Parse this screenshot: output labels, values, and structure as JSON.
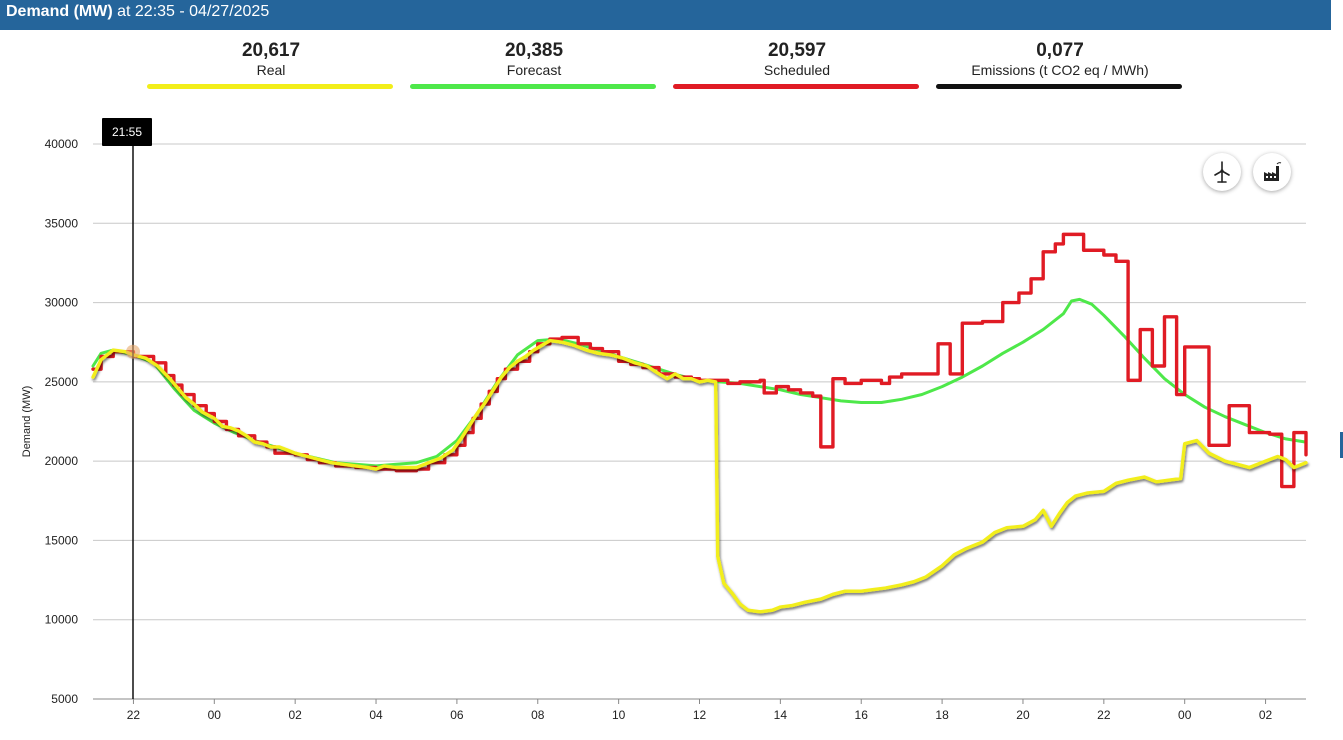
{
  "header": {
    "title_bold": "Demand (MW)",
    "title_rest": " at 22:35 - 04/27/2025",
    "color": "#25659b"
  },
  "stats": [
    {
      "value": "20,617",
      "label": "Real",
      "color": "#f2ee1a"
    },
    {
      "value": "20,385",
      "label": "Forecast",
      "color": "#4ee84a"
    },
    {
      "value": "20,597",
      "label": "Scheduled",
      "color": "#e01b24"
    },
    {
      "value": "0,077",
      "label": "Emissions (t CO2 eq / MWh)",
      "color": "#111111"
    }
  ],
  "tools": {
    "wind_icon": "wind-turbine-icon",
    "factory_icon": "factory-icon"
  },
  "cursor": {
    "label": "21:55"
  },
  "chart_data": {
    "type": "line",
    "ylabel": "Demand (MW)",
    "xlabel": "",
    "ylim": [
      5000,
      40000
    ],
    "yticks": [
      5000,
      10000,
      15000,
      20000,
      25000,
      30000,
      35000,
      40000
    ],
    "xlim": [
      21.0,
      51.0
    ],
    "xticks": [
      {
        "x": 22,
        "label": "22"
      },
      {
        "x": 24,
        "label": "00"
      },
      {
        "x": 26,
        "label": "02"
      },
      {
        "x": 28,
        "label": "04"
      },
      {
        "x": 30,
        "label": "06"
      },
      {
        "x": 32,
        "label": "08"
      },
      {
        "x": 34,
        "label": "10"
      },
      {
        "x": 36,
        "label": "12"
      },
      {
        "x": 38,
        "label": "14"
      },
      {
        "x": 40,
        "label": "16"
      },
      {
        "x": 42,
        "label": "18"
      },
      {
        "x": 44,
        "label": "20"
      },
      {
        "x": 46,
        "label": "22"
      },
      {
        "x": 48,
        "label": "00"
      },
      {
        "x": 50,
        "label": "02"
      }
    ],
    "grid": true,
    "series": [
      {
        "name": "Forecast",
        "color": "#4ee84a",
        "style": "smooth",
        "points": [
          [
            21.0,
            26000
          ],
          [
            21.2,
            26800
          ],
          [
            21.5,
            27000
          ],
          [
            22.0,
            26700
          ],
          [
            22.5,
            26200
          ],
          [
            23.0,
            24600
          ],
          [
            23.5,
            23200
          ],
          [
            24.0,
            22400
          ],
          [
            24.5,
            21800
          ],
          [
            25.0,
            21300
          ],
          [
            25.5,
            20900
          ],
          [
            26.0,
            20500
          ],
          [
            26.5,
            20200
          ],
          [
            27.0,
            19900
          ],
          [
            27.5,
            19800
          ],
          [
            28.0,
            19700
          ],
          [
            28.5,
            19800
          ],
          [
            29.0,
            19900
          ],
          [
            29.5,
            20300
          ],
          [
            30.0,
            21300
          ],
          [
            30.5,
            23000
          ],
          [
            31.0,
            25000
          ],
          [
            31.5,
            26700
          ],
          [
            32.0,
            27600
          ],
          [
            32.5,
            27700
          ],
          [
            33.0,
            27400
          ],
          [
            33.5,
            27000
          ],
          [
            34.0,
            26600
          ],
          [
            34.5,
            26200
          ],
          [
            35.0,
            25800
          ],
          [
            35.5,
            25400
          ],
          [
            36.0,
            25100
          ],
          [
            36.5,
            25000
          ],
          [
            37.0,
            24900
          ],
          [
            37.5,
            24700
          ],
          [
            38.0,
            24500
          ],
          [
            38.5,
            24200
          ],
          [
            39.0,
            24000
          ],
          [
            39.5,
            23800
          ],
          [
            40.0,
            23700
          ],
          [
            40.5,
            23700
          ],
          [
            41.0,
            23900
          ],
          [
            41.5,
            24200
          ],
          [
            42.0,
            24700
          ],
          [
            42.5,
            25300
          ],
          [
            43.0,
            26000
          ],
          [
            43.5,
            26800
          ],
          [
            44.0,
            27500
          ],
          [
            44.5,
            28300
          ],
          [
            45.0,
            29300
          ],
          [
            45.2,
            30100
          ],
          [
            45.4,
            30200
          ],
          [
            45.7,
            29900
          ],
          [
            46.0,
            29200
          ],
          [
            46.5,
            27900
          ],
          [
            47.0,
            26500
          ],
          [
            47.5,
            25200
          ],
          [
            48.0,
            24200
          ],
          [
            48.5,
            23400
          ],
          [
            49.0,
            22800
          ],
          [
            49.5,
            22300
          ],
          [
            50.0,
            21800
          ],
          [
            50.5,
            21400
          ],
          [
            51.0,
            21200
          ]
        ]
      },
      {
        "name": "Scheduled",
        "color": "#e01b24",
        "style": "step",
        "points": [
          [
            21.0,
            25800
          ],
          [
            21.2,
            26600
          ],
          [
            21.5,
            26900
          ],
          [
            22.0,
            26600
          ],
          [
            22.5,
            26200
          ],
          [
            22.8,
            25400
          ],
          [
            23.0,
            24800
          ],
          [
            23.2,
            24200
          ],
          [
            23.5,
            23500
          ],
          [
            23.8,
            23000
          ],
          [
            24.0,
            22500
          ],
          [
            24.3,
            22000
          ],
          [
            24.6,
            21600
          ],
          [
            25.0,
            21200
          ],
          [
            25.3,
            20900
          ],
          [
            25.5,
            20500
          ],
          [
            26.0,
            20400
          ],
          [
            26.3,
            20100
          ],
          [
            26.6,
            19900
          ],
          [
            27.0,
            19700
          ],
          [
            27.5,
            19600
          ],
          [
            28.0,
            19500
          ],
          [
            28.5,
            19400
          ],
          [
            29.0,
            19500
          ],
          [
            29.3,
            19900
          ],
          [
            29.7,
            20400
          ],
          [
            30.0,
            21000
          ],
          [
            30.2,
            21800
          ],
          [
            30.4,
            22700
          ],
          [
            30.6,
            23600
          ],
          [
            30.8,
            24400
          ],
          [
            31.0,
            25200
          ],
          [
            31.2,
            25800
          ],
          [
            31.5,
            26300
          ],
          [
            31.8,
            26900
          ],
          [
            32.0,
            27400
          ],
          [
            32.3,
            27700
          ],
          [
            32.6,
            27800
          ],
          [
            33.0,
            27400
          ],
          [
            33.3,
            27100
          ],
          [
            33.6,
            26900
          ],
          [
            34.0,
            26300
          ],
          [
            34.3,
            26100
          ],
          [
            34.6,
            25900
          ],
          [
            35.0,
            25500
          ],
          [
            35.4,
            25300
          ],
          [
            35.8,
            25200
          ],
          [
            36.0,
            25100
          ],
          [
            36.3,
            25100
          ],
          [
            36.7,
            24900
          ],
          [
            37.0,
            25000
          ],
          [
            37.5,
            25100
          ],
          [
            37.6,
            24300
          ],
          [
            37.9,
            24700
          ],
          [
            38.2,
            24500
          ],
          [
            38.5,
            24300
          ],
          [
            38.8,
            24100
          ],
          [
            39.0,
            20900
          ],
          [
            39.3,
            25200
          ],
          [
            39.6,
            24900
          ],
          [
            40.0,
            25100
          ],
          [
            40.5,
            24900
          ],
          [
            40.7,
            25300
          ],
          [
            41.0,
            25500
          ],
          [
            41.5,
            25500
          ],
          [
            41.9,
            27400
          ],
          [
            42.2,
            25500
          ],
          [
            42.5,
            28700
          ],
          [
            43.0,
            28800
          ],
          [
            43.5,
            30000
          ],
          [
            43.9,
            30600
          ],
          [
            44.2,
            31500
          ],
          [
            44.5,
            33200
          ],
          [
            44.8,
            33700
          ],
          [
            45.0,
            34300
          ],
          [
            45.5,
            33300
          ],
          [
            46.0,
            33000
          ],
          [
            46.3,
            32600
          ],
          [
            46.6,
            25100
          ],
          [
            46.9,
            28300
          ],
          [
            47.2,
            26000
          ],
          [
            47.5,
            29100
          ],
          [
            47.8,
            24200
          ],
          [
            48.0,
            27200
          ],
          [
            48.6,
            21000
          ],
          [
            49.1,
            23500
          ],
          [
            49.6,
            21800
          ],
          [
            50.1,
            21700
          ],
          [
            50.4,
            18400
          ],
          [
            50.7,
            21800
          ],
          [
            51.0,
            20400
          ]
        ]
      },
      {
        "name": "Real",
        "color": "#f2ee1a",
        "style": "jagged",
        "points": [
          [
            21.0,
            25300
          ],
          [
            21.2,
            26400
          ],
          [
            21.5,
            27000
          ],
          [
            21.8,
            26900
          ],
          [
            22.0,
            26700
          ],
          [
            22.3,
            26500
          ],
          [
            22.6,
            26000
          ],
          [
            22.9,
            25200
          ],
          [
            23.1,
            24600
          ],
          [
            23.3,
            24000
          ],
          [
            23.5,
            23600
          ],
          [
            23.7,
            23100
          ],
          [
            24.0,
            22700
          ],
          [
            24.2,
            22200
          ],
          [
            24.4,
            22100
          ],
          [
            24.6,
            21900
          ],
          [
            24.8,
            21600
          ],
          [
            25.0,
            21200
          ],
          [
            25.2,
            21100
          ],
          [
            25.4,
            20900
          ],
          [
            25.6,
            20900
          ],
          [
            25.8,
            20700
          ],
          [
            26.0,
            20500
          ],
          [
            26.3,
            20300
          ],
          [
            26.6,
            20100
          ],
          [
            26.9,
            19900
          ],
          [
            27.2,
            19800
          ],
          [
            27.5,
            19700
          ],
          [
            27.8,
            19600
          ],
          [
            28.0,
            19500
          ],
          [
            28.2,
            19700
          ],
          [
            28.5,
            19600
          ],
          [
            28.8,
            19600
          ],
          [
            29.0,
            19600
          ],
          [
            29.3,
            19900
          ],
          [
            29.6,
            20200
          ],
          [
            29.9,
            20700
          ],
          [
            30.1,
            21400
          ],
          [
            30.3,
            22200
          ],
          [
            30.5,
            23000
          ],
          [
            30.7,
            23700
          ],
          [
            30.9,
            24500
          ],
          [
            31.1,
            25300
          ],
          [
            31.3,
            25900
          ],
          [
            31.5,
            26300
          ],
          [
            31.7,
            26600
          ],
          [
            31.9,
            27000
          ],
          [
            32.1,
            27300
          ],
          [
            32.3,
            27600
          ],
          [
            32.6,
            27500
          ],
          [
            32.9,
            27300
          ],
          [
            33.2,
            27000
          ],
          [
            33.5,
            26800
          ],
          [
            33.8,
            26700
          ],
          [
            34.1,
            26500
          ],
          [
            34.4,
            26200
          ],
          [
            34.7,
            26000
          ],
          [
            35.0,
            25500
          ],
          [
            35.2,
            25200
          ],
          [
            35.4,
            25500
          ],
          [
            35.6,
            25200
          ],
          [
            35.8,
            25200
          ],
          [
            36.0,
            25000
          ],
          [
            36.2,
            25100
          ],
          [
            36.4,
            25000
          ],
          [
            36.45,
            14000
          ],
          [
            36.6,
            12300
          ],
          [
            36.8,
            11700
          ],
          [
            37.0,
            11000
          ],
          [
            37.2,
            10600
          ],
          [
            37.5,
            10500
          ],
          [
            37.8,
            10600
          ],
          [
            38.0,
            10800
          ],
          [
            38.3,
            10900
          ],
          [
            38.6,
            11100
          ],
          [
            39.0,
            11300
          ],
          [
            39.3,
            11600
          ],
          [
            39.6,
            11800
          ],
          [
            40.0,
            11800
          ],
          [
            40.3,
            11900
          ],
          [
            40.6,
            12000
          ],
          [
            41.0,
            12200
          ],
          [
            41.3,
            12400
          ],
          [
            41.6,
            12700
          ],
          [
            42.0,
            13400
          ],
          [
            42.3,
            14100
          ],
          [
            42.6,
            14500
          ],
          [
            43.0,
            14900
          ],
          [
            43.3,
            15500
          ],
          [
            43.6,
            15800
          ],
          [
            44.0,
            15900
          ],
          [
            44.3,
            16300
          ],
          [
            44.5,
            16900
          ],
          [
            44.7,
            15900
          ],
          [
            44.9,
            16700
          ],
          [
            45.1,
            17400
          ],
          [
            45.3,
            17800
          ],
          [
            45.6,
            18000
          ],
          [
            46.0,
            18100
          ],
          [
            46.3,
            18600
          ],
          [
            46.6,
            18800
          ],
          [
            47.0,
            19000
          ],
          [
            47.3,
            18700
          ],
          [
            47.6,
            18800
          ],
          [
            47.9,
            18900
          ],
          [
            48.0,
            21100
          ],
          [
            48.3,
            21300
          ],
          [
            48.6,
            20500
          ],
          [
            49.0,
            20000
          ],
          [
            49.3,
            19800
          ],
          [
            49.6,
            19600
          ],
          [
            50.0,
            20000
          ],
          [
            50.3,
            20300
          ],
          [
            50.5,
            20100
          ],
          [
            50.7,
            19600
          ],
          [
            51.0,
            19900
          ]
        ]
      }
    ]
  }
}
